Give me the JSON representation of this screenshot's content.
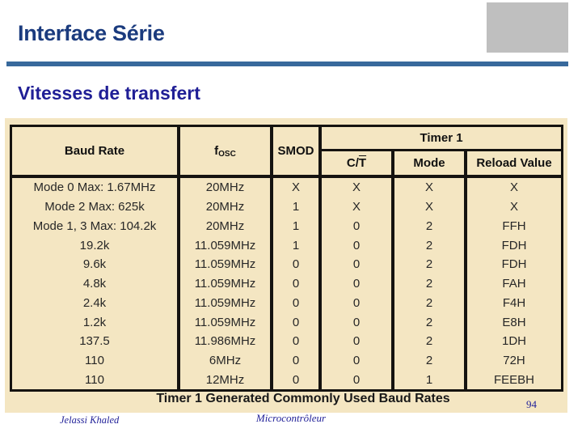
{
  "slide": {
    "title": "Interface Série",
    "subtitle": "Vitesses de transfert",
    "page_number": "94",
    "footer_left": "Jelassi Khaled",
    "footer_center": "Microcontrôleur"
  },
  "table": {
    "caption": "Timer 1 Generated Commonly Used Baud Rates",
    "headers": {
      "baud_rate": "Baud Rate",
      "fosc_main": "f",
      "fosc_sub": "OSC",
      "smod": "SMOD",
      "timer1": "Timer 1",
      "ct_prefix": "C/",
      "ct_overline": "T",
      "mode": "Mode",
      "reload_value": "Reload Value"
    },
    "rows": [
      [
        "Mode 0 Max: 1.67MHz",
        "20MHz",
        "X",
        "X",
        "X",
        "X"
      ],
      [
        "Mode 2 Max: 625k",
        "20MHz",
        "1",
        "X",
        "X",
        "X"
      ],
      [
        "Mode 1, 3 Max: 104.2k",
        "20MHz",
        "1",
        "0",
        "2",
        "FFH"
      ],
      [
        "19.2k",
        "11.059MHz",
        "1",
        "0",
        "2",
        "FDH"
      ],
      [
        "9.6k",
        "11.059MHz",
        "0",
        "0",
        "2",
        "FDH"
      ],
      [
        "4.8k",
        "11.059MHz",
        "0",
        "0",
        "2",
        "FAH"
      ],
      [
        "2.4k",
        "11.059MHz",
        "0",
        "0",
        "2",
        "F4H"
      ],
      [
        "1.2k",
        "11.059MHz",
        "0",
        "0",
        "2",
        "E8H"
      ],
      [
        "137.5",
        "11.986MHz",
        "0",
        "0",
        "2",
        "1DH"
      ],
      [
        "110",
        "6MHz",
        "0",
        "0",
        "2",
        "72H"
      ],
      [
        "110",
        "12MHz",
        "0",
        "0",
        "1",
        "FEEBH"
      ]
    ]
  },
  "colors": {
    "title_navy": "#1b3b7e",
    "subtitle_navy": "#201f96",
    "rule_blue": "#38699c",
    "corner_gray": "#bfbfbf",
    "scan_cream": "#f4e6c2",
    "table_border": "#151310",
    "footer_navy": "#23239a"
  }
}
